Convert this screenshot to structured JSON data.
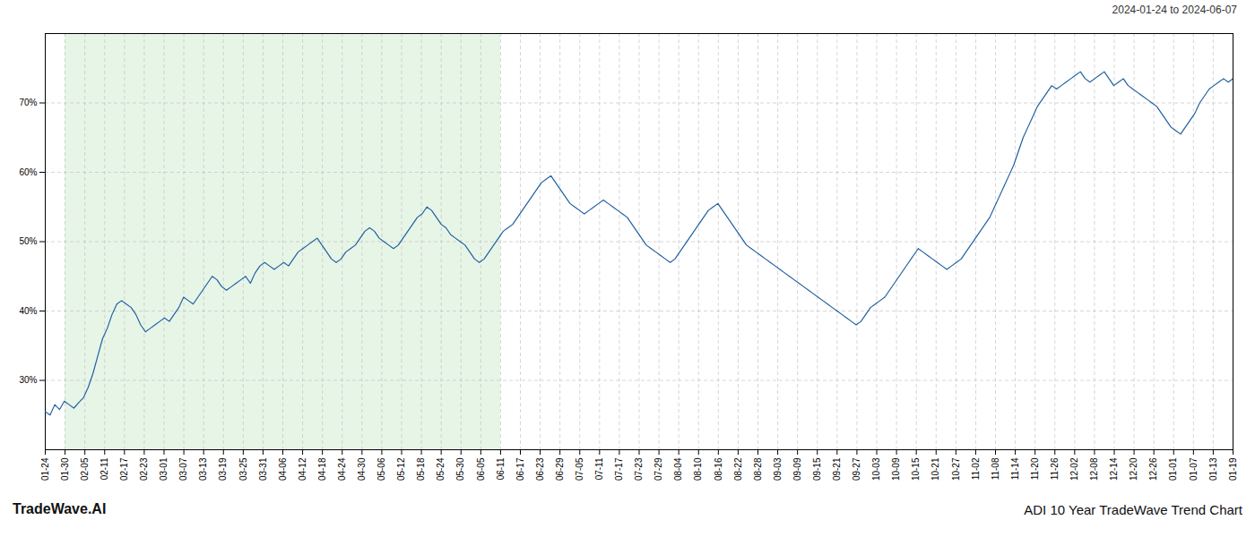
{
  "chart_data": {
    "type": "line",
    "title": "ADI 10 Year TradeWave Trend Chart",
    "subtitle": "2024-01-24 to 2024-06-07",
    "annotations": [
      "TradeWave.AI"
    ],
    "color": "#2060a0",
    "shade_color": "#d4ecd4",
    "shaded_range": [
      4.15,
      95.45
    ],
    "grid": true,
    "xlim": [
      0,
      249
    ],
    "xticks": [
      {
        "value": 0,
        "label": "01-24"
      },
      {
        "value": 4.15,
        "label": "01-30"
      },
      {
        "value": 8.3,
        "label": "02-05"
      },
      {
        "value": 12.45,
        "label": "02-11"
      },
      {
        "value": 16.6,
        "label": "02-17"
      },
      {
        "value": 20.75,
        "label": "02-23"
      },
      {
        "value": 24.9,
        "label": "03-01"
      },
      {
        "value": 29.05,
        "label": "03-07"
      },
      {
        "value": 33.2,
        "label": "03-13"
      },
      {
        "value": 37.35,
        "label": "03-19"
      },
      {
        "value": 41.5,
        "label": "03-25"
      },
      {
        "value": 45.65,
        "label": "03-31"
      },
      {
        "value": 49.8,
        "label": "04-06"
      },
      {
        "value": 53.95,
        "label": "04-12"
      },
      {
        "value": 58.1,
        "label": "04-18"
      },
      {
        "value": 62.25,
        "label": "04-24"
      },
      {
        "value": 66.4,
        "label": "04-30"
      },
      {
        "value": 70.55,
        "label": "05-06"
      },
      {
        "value": 74.7,
        "label": "05-12"
      },
      {
        "value": 78.85,
        "label": "05-18"
      },
      {
        "value": 83,
        "label": "05-24"
      },
      {
        "value": 87.15,
        "label": "05-30"
      },
      {
        "value": 91.3,
        "label": "06-05"
      },
      {
        "value": 95.45,
        "label": "06-11"
      },
      {
        "value": 99.6,
        "label": "06-17"
      },
      {
        "value": 103.75,
        "label": "06-23"
      },
      {
        "value": 107.9,
        "label": "06-29"
      },
      {
        "value": 112.05,
        "label": "07-05"
      },
      {
        "value": 116.2,
        "label": "07-11"
      },
      {
        "value": 120.35,
        "label": "07-17"
      },
      {
        "value": 124.5,
        "label": "07-23"
      },
      {
        "value": 128.65,
        "label": "07-29"
      },
      {
        "value": 132.8,
        "label": "08-04"
      },
      {
        "value": 136.95,
        "label": "08-10"
      },
      {
        "value": 141.1,
        "label": "08-16"
      },
      {
        "value": 145.25,
        "label": "08-22"
      },
      {
        "value": 149.4,
        "label": "08-28"
      },
      {
        "value": 153.55,
        "label": "09-03"
      },
      {
        "value": 157.7,
        "label": "09-09"
      },
      {
        "value": 161.85,
        "label": "09-15"
      },
      {
        "value": 166,
        "label": "09-21"
      },
      {
        "value": 170.15,
        "label": "09-27"
      },
      {
        "value": 174.3,
        "label": "10-03"
      },
      {
        "value": 178.45,
        "label": "10-09"
      },
      {
        "value": 182.6,
        "label": "10-15"
      },
      {
        "value": 186.75,
        "label": "10-21"
      },
      {
        "value": 190.9,
        "label": "10-27"
      },
      {
        "value": 195.05,
        "label": "11-02"
      },
      {
        "value": 199.2,
        "label": "11-08"
      },
      {
        "value": 203.35,
        "label": "11-14"
      },
      {
        "value": 207.5,
        "label": "11-20"
      },
      {
        "value": 211.65,
        "label": "11-26"
      },
      {
        "value": 215.8,
        "label": "12-02"
      },
      {
        "value": 219.95,
        "label": "12-08"
      },
      {
        "value": 224.1,
        "label": "12-14"
      },
      {
        "value": 228.25,
        "label": "12-20"
      },
      {
        "value": 232.4,
        "label": "12-26"
      },
      {
        "value": 236.55,
        "label": "01-01"
      },
      {
        "value": 240.7,
        "label": "01-07"
      },
      {
        "value": 244.85,
        "label": "01-13"
      },
      {
        "value": 249,
        "label": "01-19"
      }
    ],
    "ylim": [
      20,
      80
    ],
    "yticks": [
      {
        "value": 30,
        "label": "30%"
      },
      {
        "value": 40,
        "label": "40%"
      },
      {
        "value": 50,
        "label": "50%"
      },
      {
        "value": 60,
        "label": "60%"
      },
      {
        "value": 70,
        "label": "70%"
      }
    ],
    "values": [
      25.5,
      25.0,
      26.5,
      25.8,
      27.0,
      26.5,
      26.0,
      26.8,
      27.5,
      29.0,
      31.0,
      33.5,
      36.0,
      37.5,
      39.5,
      41.0,
      41.5,
      41.0,
      40.5,
      39.5,
      38.0,
      37.0,
      37.5,
      38.0,
      38.5,
      39.0,
      38.5,
      39.5,
      40.5,
      42.0,
      41.5,
      41.0,
      42.0,
      43.0,
      44.0,
      45.0,
      44.5,
      43.5,
      43.0,
      43.5,
      44.0,
      44.5,
      45.0,
      44.0,
      45.5,
      46.5,
      47.0,
      46.5,
      46.0,
      46.5,
      47.0,
      46.5,
      47.5,
      48.5,
      49.0,
      49.5,
      50.0,
      50.5,
      49.5,
      48.5,
      47.5,
      47.0,
      47.5,
      48.5,
      49.0,
      49.5,
      50.5,
      51.5,
      52.0,
      51.5,
      50.5,
      50.0,
      49.5,
      49.0,
      49.5,
      50.5,
      51.5,
      52.5,
      53.5,
      54.0,
      55.0,
      54.5,
      53.5,
      52.5,
      52.0,
      51.0,
      50.5,
      50.0,
      49.5,
      48.5,
      47.5,
      47.0,
      47.5,
      48.5,
      49.5,
      50.5,
      51.5,
      52.0,
      52.5,
      53.5,
      54.5,
      55.5,
      56.5,
      57.5,
      58.5,
      59.0,
      59.5,
      58.5,
      57.5,
      56.5,
      55.5,
      55.0,
      54.5,
      54.0,
      54.5,
      55.0,
      55.5,
      56.0,
      55.5,
      55.0,
      54.5,
      54.0,
      53.5,
      52.5,
      51.5,
      50.5,
      49.5,
      49.0,
      48.5,
      48.0,
      47.5,
      47.0,
      47.5,
      48.5,
      49.5,
      50.5,
      51.5,
      52.5,
      53.5,
      54.5,
      55.0,
      55.5,
      54.5,
      53.5,
      52.5,
      51.5,
      50.5,
      49.5,
      49.0,
      48.5,
      48.0,
      47.5,
      47.0,
      46.5,
      46.0,
      45.5,
      45.0,
      44.5,
      44.0,
      43.5,
      43.0,
      42.5,
      42.0,
      41.5,
      41.0,
      40.5,
      40.0,
      39.5,
      39.0,
      38.5,
      38.0,
      38.5,
      39.5,
      40.5,
      41.0,
      41.5,
      42.0,
      43.0,
      44.0,
      45.0,
      46.0,
      47.0,
      48.0,
      49.0,
      48.5,
      48.0,
      47.5,
      47.0,
      46.5,
      46.0,
      46.5,
      47.0,
      47.5,
      48.5,
      49.5,
      50.5,
      51.5,
      52.5,
      53.5,
      55.0,
      56.5,
      58.0,
      59.5,
      61.0,
      63.0,
      65.0,
      66.5,
      68.0,
      69.5,
      70.5,
      71.5,
      72.5,
      72.0,
      72.5,
      73.0,
      73.5,
      74.0,
      74.5,
      73.5,
      73.0,
      73.5,
      74.0,
      74.5,
      73.5,
      72.5,
      73.0,
      73.5,
      72.5,
      72.0,
      71.5,
      71.0,
      70.5,
      70.0,
      69.5,
      68.5,
      67.5,
      66.5,
      66.0,
      65.5,
      66.5,
      67.5,
      68.5,
      70.0,
      71.0,
      72.0,
      72.5,
      73.0,
      73.5,
      73.0,
      73.5
    ]
  }
}
